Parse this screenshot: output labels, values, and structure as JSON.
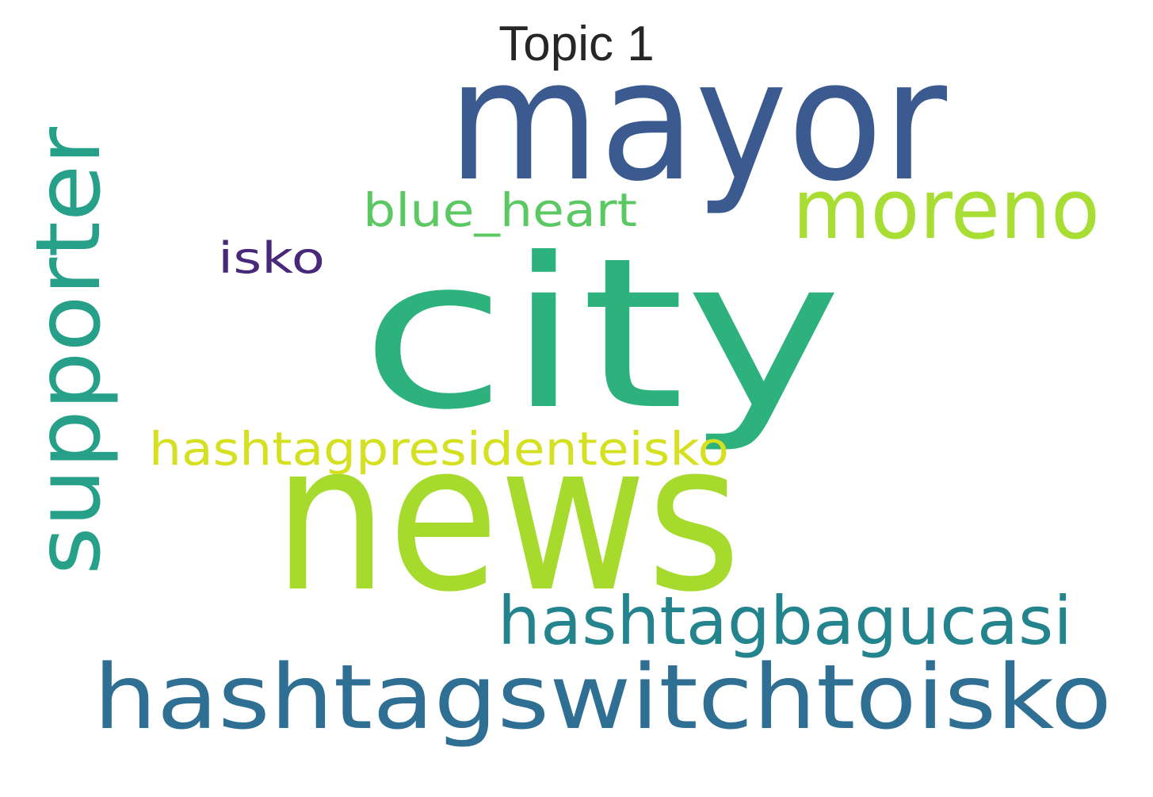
{
  "title": "Topic 1",
  "words": [
    {
      "text": "mayor",
      "color": "#3b5a8f",
      "orientation": "horizontal"
    },
    {
      "text": "city",
      "color": "#2db27d",
      "orientation": "horizontal"
    },
    {
      "text": "news",
      "color": "#a6db2d",
      "orientation": "horizontal"
    },
    {
      "text": "hashtagswitchtoisko",
      "color": "#2f6f93",
      "orientation": "horizontal"
    },
    {
      "text": "supporter",
      "color": "#27a08a",
      "orientation": "vertical"
    },
    {
      "text": "moreno",
      "color": "#a8de34",
      "orientation": "horizontal"
    },
    {
      "text": "hashtagbagucasi",
      "color": "#23848e",
      "orientation": "horizontal"
    },
    {
      "text": "hashtagpresidenteisko",
      "color": "#d5e120",
      "orientation": "horizontal"
    },
    {
      "text": "blue_heart",
      "color": "#5cc863",
      "orientation": "horizontal"
    },
    {
      "text": "isko",
      "color": "#482878",
      "orientation": "horizontal"
    }
  ]
}
